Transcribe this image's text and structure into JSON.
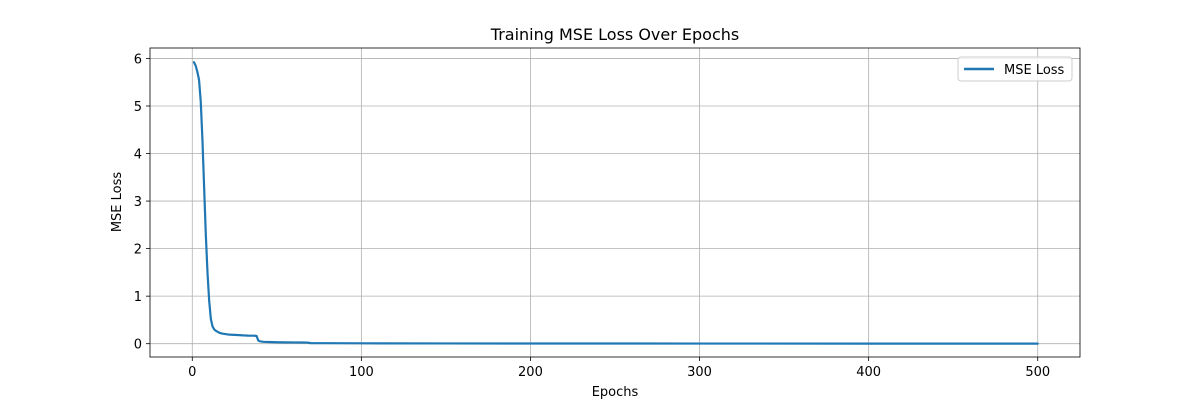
{
  "chart_data": {
    "type": "line",
    "title": "Training MSE Loss Over Epochs",
    "xlabel": "Epochs",
    "ylabel": "MSE Loss",
    "xlim": [
      -25,
      525
    ],
    "ylim": [
      -0.28,
      6.22
    ],
    "xticks": [
      0,
      100,
      200,
      300,
      400,
      500
    ],
    "yticks": [
      0,
      1,
      2,
      3,
      4,
      5,
      6
    ],
    "grid": true,
    "legend_position": "top-right",
    "series": [
      {
        "name": "MSE Loss",
        "color": "#1f77b4",
        "x": [
          1,
          2,
          3,
          4,
          5,
          6,
          7,
          8,
          9,
          10,
          11,
          12,
          13,
          14,
          15,
          16,
          18,
          20,
          22,
          25,
          28,
          30,
          33,
          36,
          38,
          39,
          40,
          42,
          45,
          50,
          55,
          60,
          65,
          68,
          70,
          80,
          100,
          150,
          200,
          300,
          400,
          500
        ],
        "y": [
          5.92,
          5.85,
          5.72,
          5.55,
          5.1,
          4.3,
          3.3,
          2.3,
          1.5,
          0.9,
          0.52,
          0.36,
          0.3,
          0.27,
          0.25,
          0.23,
          0.21,
          0.2,
          0.19,
          0.185,
          0.18,
          0.175,
          0.17,
          0.168,
          0.165,
          0.07,
          0.05,
          0.04,
          0.035,
          0.03,
          0.028,
          0.026,
          0.025,
          0.024,
          0.012,
          0.01,
          0.008,
          0.005,
          0.004,
          0.003,
          0.002,
          0.002
        ]
      }
    ]
  }
}
